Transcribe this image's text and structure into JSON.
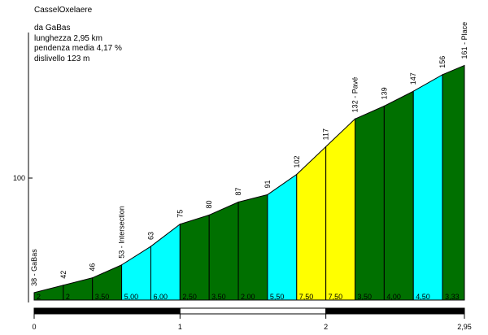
{
  "header": {
    "title": "CasselOxelaere",
    "from": "da GaBas",
    "length": "lunghezza 2,95 km",
    "gradient": "pendenza media 4,17 %",
    "climb": "dislivello 123 m"
  },
  "chart_data": {
    "type": "area",
    "title": "CasselOxelaere",
    "xlabel": "",
    "ylabel": "",
    "xlim": [
      0,
      2.95
    ],
    "ylim": [
      30,
      170
    ],
    "x_ticks": [
      {
        "value": 0,
        "label": "0"
      },
      {
        "value": 1,
        "label": "1"
      },
      {
        "value": 2,
        "label": "2"
      },
      {
        "value": 2.95,
        "label": "2,95"
      }
    ],
    "y_ticks": [
      {
        "value": 100,
        "label": "100"
      }
    ],
    "points": [
      {
        "x": 0.0,
        "y": 38,
        "label": "38 - GaBas"
      },
      {
        "x": 0.2,
        "y": 42,
        "label": "42"
      },
      {
        "x": 0.4,
        "y": 46,
        "label": "46"
      },
      {
        "x": 0.6,
        "y": 53,
        "label": "53 - Intersection"
      },
      {
        "x": 0.8,
        "y": 63,
        "label": "63"
      },
      {
        "x": 1.0,
        "y": 75,
        "label": "75"
      },
      {
        "x": 1.2,
        "y": 80,
        "label": "80"
      },
      {
        "x": 1.4,
        "y": 87,
        "label": "87"
      },
      {
        "x": 1.6,
        "y": 91,
        "label": "91"
      },
      {
        "x": 1.8,
        "y": 102,
        "label": "102"
      },
      {
        "x": 2.0,
        "y": 117,
        "label": "117"
      },
      {
        "x": 2.2,
        "y": 132,
        "label": "132 - Pavé"
      },
      {
        "x": 2.4,
        "y": 139,
        "label": "139"
      },
      {
        "x": 2.6,
        "y": 147,
        "label": "147"
      },
      {
        "x": 2.8,
        "y": 156,
        "label": "156"
      },
      {
        "x": 2.95,
        "y": 161,
        "label": "161 - Place"
      }
    ],
    "segments": [
      {
        "gradient": "2",
        "color": "#007000"
      },
      {
        "gradient": "2",
        "color": "#007000"
      },
      {
        "gradient": "3,50",
        "color": "#007000"
      },
      {
        "gradient": "5,00",
        "color": "#00ffff"
      },
      {
        "gradient": "6,00",
        "color": "#00ffff"
      },
      {
        "gradient": "2,50",
        "color": "#007000"
      },
      {
        "gradient": "3,50",
        "color": "#007000"
      },
      {
        "gradient": "2,00",
        "color": "#007000"
      },
      {
        "gradient": "5,50",
        "color": "#00ffff"
      },
      {
        "gradient": "7,50",
        "color": "#ffff00"
      },
      {
        "gradient": "7,50",
        "color": "#ffff00"
      },
      {
        "gradient": "3,50",
        "color": "#007000"
      },
      {
        "gradient": "4,00",
        "color": "#007000"
      },
      {
        "gradient": "4,50",
        "color": "#00ffff"
      },
      {
        "gradient": "3,33",
        "color": "#007000"
      }
    ],
    "km_bar": [
      {
        "from": 0,
        "to": 1,
        "color": "#000000"
      },
      {
        "from": 1,
        "to": 2,
        "color": "#ffffff"
      },
      {
        "from": 2,
        "to": 2.95,
        "color": "#000000"
      }
    ],
    "grid": false,
    "legend": "none"
  }
}
